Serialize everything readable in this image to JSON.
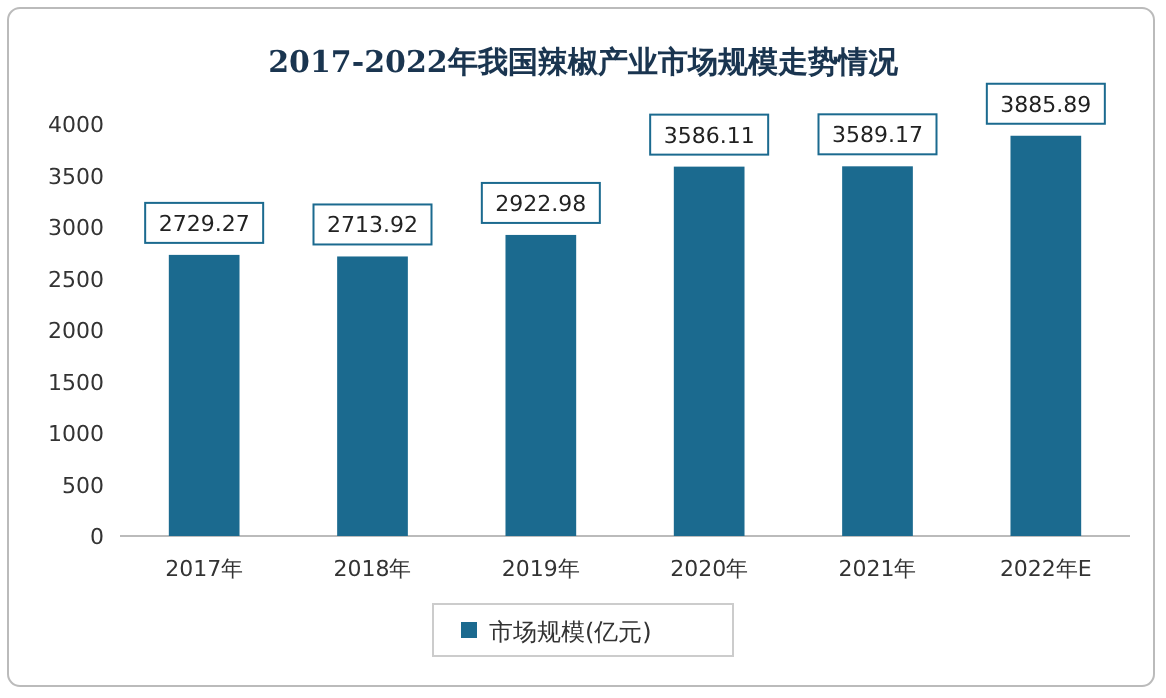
{
  "chart_data": {
    "type": "bar",
    "title": "2017-2022年我国辣椒产业市场规模走势情况",
    "categories": [
      "2017年",
      "2018年",
      "2019年",
      "2020年",
      "2021年",
      "2022年E"
    ],
    "series": [
      {
        "name": "市场规模(亿元)",
        "color": "#1b6a8f",
        "values": [
          2729.27,
          2713.92,
          2922.98,
          3586.11,
          3589.17,
          3885.89
        ]
      }
    ],
    "ylim": [
      0,
      4000
    ],
    "yticks": [
      0,
      500,
      1000,
      1500,
      2000,
      2500,
      3000,
      3500,
      4000
    ],
    "data_labels": true,
    "legend": "bottom"
  }
}
